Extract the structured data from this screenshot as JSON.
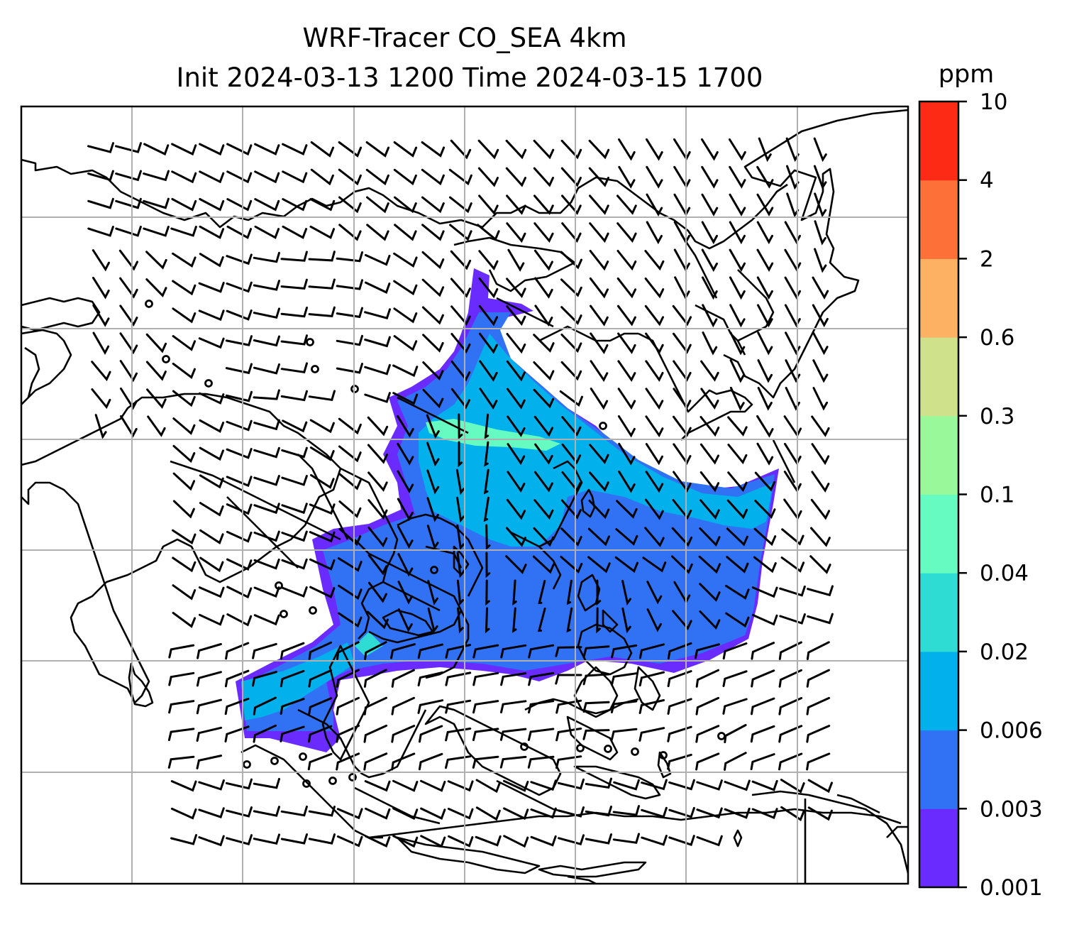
{
  "title": {
    "line1": "WRF-Tracer CO_SEA 4km",
    "line2": "Init 2024-03-13 1200 Time 2024-03-15 1700"
  },
  "colorbar": {
    "unit": "ppm",
    "levels": [
      "0.001",
      "0.003",
      "0.006",
      "0.02",
      "0.04",
      "0.1",
      "0.3",
      "0.6",
      "2",
      "4",
      "10"
    ],
    "colors": [
      "#6a2bff",
      "#3172f4",
      "#02b1ec",
      "#2fdcd4",
      "#66fcc1",
      "#99f99a",
      "#cfe18a",
      "#fcb163",
      "#fd7139",
      "#fd2b15"
    ]
  },
  "map": {
    "gridlines": true,
    "coastline_color": "#000000",
    "grid_color": "#b0b0b0",
    "plume_colors": {
      "low": "#6a2bff",
      "mid": "#3172f4",
      "high": "#02b1ec",
      "peak": "#66fcc1"
    },
    "calm_wind_symbol": "circle-icon",
    "wind_symbol": "wind-barb-icon"
  }
}
